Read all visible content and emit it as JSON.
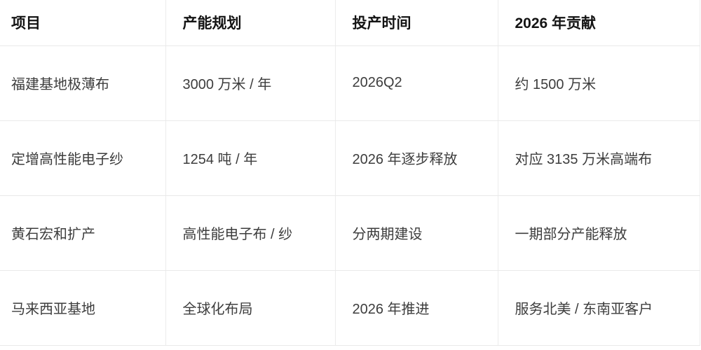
{
  "table": {
    "columns": [
      {
        "label": "项目"
      },
      {
        "label": "产能规划"
      },
      {
        "label": "投产时间"
      },
      {
        "label": "2026 年贡献"
      }
    ],
    "rows": [
      {
        "project": "福建基地极薄布",
        "capacity": "3000 万米 / 年",
        "timing": "2026Q2",
        "contribution": "约 1500 万米"
      },
      {
        "project": "定增高性能电子纱",
        "capacity": "1254 吨 / 年",
        "timing": "2026 年逐步释放",
        "contribution": "对应 3135 万米高端布"
      },
      {
        "project": "黄石宏和扩产",
        "capacity": "高性能电子布 / 纱",
        "timing": "分两期建设",
        "contribution": "一期部分产能释放"
      },
      {
        "project": "马来西亚基地",
        "capacity": "全球化布局",
        "timing": "2026 年推进",
        "contribution": "服务北美 / 东南亚客户"
      }
    ]
  },
  "colors": {
    "header_text": "#141414",
    "body_text": "#3d3d3d",
    "border": "#ececec",
    "background": "#ffffff"
  }
}
